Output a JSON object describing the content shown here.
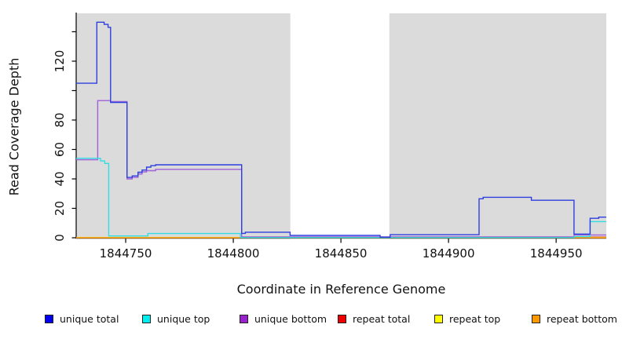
{
  "chart_data": {
    "type": "step-line",
    "title": "",
    "xlabel": "Coordinate in Reference Genome",
    "ylabel": "Read Coverage Depth",
    "xlim": [
      1844727,
      1844973.3
    ],
    "ylim": [
      0,
      152.5
    ],
    "grid": false,
    "panel_bg": "#DBDBDB",
    "white_region": {
      "from": 1844826.5,
      "to": 1844872.5,
      "color": "#FFFFFF"
    },
    "legend_position": "bottom",
    "xticks": [
      {
        "v": 1844750,
        "label": "1844750"
      },
      {
        "v": 1844800,
        "label": "1844800"
      },
      {
        "v": 1844850,
        "label": "1844850"
      },
      {
        "v": 1844900,
        "label": "1844900"
      },
      {
        "v": 1844950,
        "label": "1844950"
      }
    ],
    "yticks": [
      {
        "v": 0,
        "label": "0"
      },
      {
        "v": 20,
        "label": "20"
      },
      {
        "v": 40,
        "label": "40"
      },
      {
        "v": 60,
        "label": "60"
      },
      {
        "v": 80,
        "label": "80"
      },
      {
        "v": 100,
        "label": ""
      },
      {
        "v": 120,
        "label": "120"
      },
      {
        "v": 140,
        "label": ""
      }
    ],
    "series": [
      {
        "name": "unique-total",
        "label": "unique total",
        "color": "#2E3FDF",
        "legend_color": "#0000EE",
        "z": 6,
        "points": [
          [
            1844727,
            105
          ],
          [
            1844736.6,
            146.5
          ],
          [
            1844740,
            145
          ],
          [
            1844741.8,
            143
          ],
          [
            1844743,
            92
          ],
          [
            1844750.6,
            41
          ],
          [
            1844753,
            42
          ],
          [
            1844755.7,
            44.5
          ],
          [
            1844757.6,
            46
          ],
          [
            1844759.7,
            48
          ],
          [
            1844761.7,
            49
          ],
          [
            1844763.9,
            49.6
          ],
          [
            1844803.9,
            3
          ],
          [
            1844805.6,
            3.8
          ],
          [
            1844826.4,
            1.6
          ],
          [
            1844868.2,
            0.4
          ],
          [
            1844872.9,
            2.1
          ],
          [
            1844914.2,
            26.5
          ],
          [
            1844916.1,
            27.5
          ],
          [
            1844938.5,
            25.5
          ],
          [
            1844958.3,
            2.5
          ],
          [
            1844965.8,
            13.2
          ],
          [
            1844969.8,
            14
          ]
        ]
      },
      {
        "name": "unique-top",
        "label": "unique top",
        "color": "#30DDE4",
        "legend_color": "#00EEEE",
        "z": 5,
        "points": [
          [
            1844727,
            54
          ],
          [
            1844738.3,
            52.2
          ],
          [
            1844740.3,
            50.5
          ],
          [
            1844742.1,
            1.2
          ],
          [
            1844760.3,
            2.9
          ],
          [
            1844803.3,
            0.1
          ],
          [
            1844958.3,
            0.8
          ],
          [
            1844965.8,
            11
          ]
        ]
      },
      {
        "name": "unique-bottom",
        "label": "unique bottom",
        "color": "#A060D8",
        "legend_color": "#9922CC",
        "z": 4,
        "points": [
          [
            1844727,
            53
          ],
          [
            1844737,
            93.2
          ],
          [
            1844743,
            92.5
          ],
          [
            1844750.6,
            40
          ],
          [
            1844753,
            41
          ],
          [
            1844755.7,
            43.3
          ],
          [
            1844757.6,
            44.8
          ],
          [
            1844759.7,
            45.6
          ],
          [
            1844763.9,
            46.5
          ],
          [
            1844803.9,
            0.6
          ],
          [
            1844958.3,
            1.9
          ]
        ]
      },
      {
        "name": "repeat-total",
        "label": "repeat total",
        "color": "#CC3355",
        "legend_color": "#EE0000",
        "z": 1,
        "points": [
          [
            1844727,
            0.1
          ],
          [
            1844803.9,
            0.5
          ]
        ]
      },
      {
        "name": "repeat-top",
        "label": "repeat top",
        "color": "#EEEE33",
        "legend_color": "#FFFF00",
        "z": 2,
        "points": [
          [
            1844727,
            0.2
          ]
        ]
      },
      {
        "name": "repeat-bottom",
        "label": "repeat bottom",
        "color": "#FF9914",
        "legend_color": "#FF9900",
        "z": 3,
        "points": [
          [
            1844727,
            0
          ]
        ]
      }
    ]
  }
}
